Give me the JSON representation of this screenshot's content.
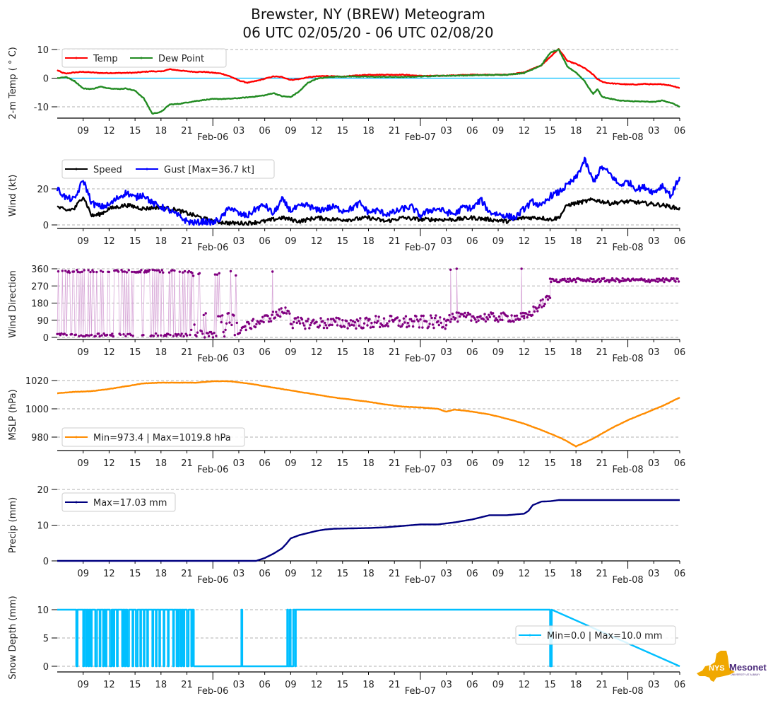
{
  "title": {
    "line1": "Brewster, NY (BREW) Meteogram",
    "line2": "06 UTC 02/05/20 - 06 UTC 02/08/20"
  },
  "x_axis": {
    "start": "06 UTC 02/05/20",
    "end": "06 UTC 02/08/20",
    "hours_span": 72,
    "minor_tick_labels": [
      "09",
      "12",
      "15",
      "18",
      "21",
      "03",
      "06",
      "09",
      "12",
      "15",
      "18",
      "21",
      "03",
      "06",
      "09",
      "12",
      "15",
      "18",
      "21",
      "03",
      "06"
    ],
    "minor_tick_hours": [
      3,
      6,
      9,
      12,
      15,
      21,
      24,
      27,
      30,
      33,
      36,
      39,
      45,
      48,
      51,
      54,
      57,
      60,
      63,
      69,
      72
    ],
    "major_tick_labels": [
      "Feb-06",
      "Feb-07",
      "Feb-08"
    ],
    "major_tick_hours": [
      18,
      42,
      66
    ]
  },
  "logo": {
    "name": "NYS Mesonet",
    "text_nys": "NYS",
    "text_mesonet": "Mesonet",
    "subtext": "UNIVERSITY AT ALBANY",
    "colors": {
      "state": "#f0a800",
      "text": "#4b2a7b"
    }
  },
  "chart_data": [
    {
      "type": "line",
      "id": "temp",
      "ylabel": "2-m Temp ($^\\circ$C)",
      "ylabel_display": "2-m Temp ( ° C)",
      "yticks": [
        -10,
        0,
        10
      ],
      "ylim": [
        -14,
        12
      ],
      "grid": true,
      "zero_line": {
        "value": 0,
        "color": "#00bfff"
      },
      "legend": {
        "position": "top-left",
        "ncol": 2
      },
      "series": [
        {
          "name": "Temp",
          "color": "#ff0000",
          "x": [
            0,
            0.5,
            1,
            2,
            3,
            5,
            7,
            9,
            10,
            11,
            12,
            13,
            15,
            16,
            17,
            19,
            20,
            21,
            22,
            23,
            24,
            25,
            26,
            27,
            28,
            29,
            30,
            31,
            32,
            33,
            34,
            36,
            40,
            42,
            44,
            46,
            48,
            50,
            52,
            54,
            56,
            58,
            59,
            60,
            61,
            62,
            62.5,
            63,
            63.5,
            64,
            65,
            66,
            67,
            68,
            69,
            70,
            71,
            72
          ],
          "values": [
            2.8,
            2.0,
            1.6,
            2.0,
            2.2,
            1.8,
            1.8,
            1.9,
            2.2,
            2.4,
            2.3,
            3.1,
            2.4,
            2.2,
            2.2,
            1.6,
            0.6,
            -0.8,
            -1.6,
            -1.0,
            -0.2,
            0.6,
            0.4,
            -0.6,
            -0.3,
            0.3,
            0.6,
            0.8,
            0.6,
            0.5,
            0.8,
            1.2,
            1.2,
            0.8,
            0.8,
            1.0,
            1.2,
            1.2,
            1.2,
            2.0,
            4.5,
            10.2,
            6.0,
            5.0,
            3.5,
            1.2,
            -0.4,
            -1.2,
            -1.6,
            -1.8,
            -2.0,
            -2.2,
            -2.2,
            -2.0,
            -2.2,
            -2.1,
            -2.6,
            -3.4
          ]
        },
        {
          "name": "Dew Point",
          "color": "#228b22",
          "x": [
            0,
            1,
            2,
            3,
            4,
            5,
            6,
            7,
            8,
            9,
            10,
            11,
            12,
            13,
            14,
            15,
            16,
            17,
            18,
            20,
            22,
            24,
            25,
            26,
            27,
            28,
            29,
            30,
            31,
            32,
            34,
            36,
            40,
            44,
            48,
            52,
            54,
            56,
            57,
            58,
            58.5,
            59,
            60,
            61,
            61.5,
            62,
            62.5,
            63,
            64,
            65,
            66,
            67,
            68,
            69,
            70,
            71,
            72
          ],
          "values": [
            0.0,
            0.4,
            -1.0,
            -3.6,
            -3.8,
            -3.0,
            -3.5,
            -3.8,
            -3.6,
            -4.4,
            -7.0,
            -12.4,
            -11.8,
            -9.2,
            -9.0,
            -8.5,
            -8.0,
            -7.6,
            -7.3,
            -7.2,
            -6.7,
            -6.0,
            -5.2,
            -6.3,
            -6.6,
            -4.6,
            -1.6,
            -0.2,
            0.2,
            0.5,
            0.6,
            0.5,
            0.4,
            0.8,
            1.0,
            1.2,
            1.8,
            4.5,
            8.8,
            10.0,
            7.0,
            4.0,
            2.0,
            -1.0,
            -3.5,
            -5.5,
            -3.8,
            -6.5,
            -7.2,
            -7.8,
            -8.0,
            -8.1,
            -8.2,
            -8.3,
            -7.8,
            -8.6,
            -10.0
          ]
        }
      ]
    },
    {
      "type": "line",
      "id": "wind",
      "ylabel": "Wind (kt)",
      "yticks": [
        0,
        20
      ],
      "ylim": [
        -2,
        38
      ],
      "grid": true,
      "legend": {
        "position": "top-left",
        "ncol": 2
      },
      "series": [
        {
          "name": "Speed",
          "color": "#000000",
          "x": [
            0,
            1,
            2,
            3,
            4,
            5,
            6,
            8,
            10,
            12,
            14,
            16,
            18,
            20,
            22,
            24,
            26,
            28,
            30,
            32,
            34,
            36,
            38,
            40,
            42,
            44,
            46,
            48,
            50,
            52,
            54,
            56,
            57,
            58,
            59,
            60,
            62,
            64,
            66,
            68,
            70,
            71,
            72
          ],
          "values": [
            10,
            8,
            9,
            16,
            5,
            6,
            9,
            11,
            9,
            10,
            8,
            5,
            2,
            1,
            1,
            2,
            4,
            2,
            4,
            3,
            3,
            4,
            2,
            4,
            3,
            3,
            3,
            4,
            3,
            2,
            4,
            4,
            3,
            4,
            11,
            12,
            14,
            12,
            13,
            12,
            11,
            10,
            9
          ]
        },
        {
          "name": "Gust [Max=36.7 kt]",
          "color": "#0000ff",
          "x": [
            0,
            1,
            2,
            3,
            4,
            5,
            6,
            7,
            8,
            9,
            10,
            11,
            12,
            13,
            14,
            15,
            16,
            17,
            18,
            19,
            20,
            21,
            22,
            23,
            24,
            25,
            26,
            27,
            28,
            29,
            30,
            31,
            32,
            33,
            34,
            35,
            36,
            37,
            38,
            39,
            40,
            41,
            42,
            43,
            44,
            45,
            46,
            47,
            48,
            49,
            50,
            51,
            52,
            53,
            54,
            55,
            56,
            57,
            58,
            59,
            60,
            61,
            62,
            63,
            64,
            65,
            66,
            67,
            68,
            69,
            70,
            71,
            72
          ],
          "values": [
            20,
            15,
            14,
            25,
            12,
            10,
            11,
            15,
            18,
            15,
            17,
            12,
            10,
            8,
            5,
            2,
            1,
            2,
            1,
            4,
            10,
            6,
            5,
            9,
            11,
            6,
            14,
            8,
            10,
            11,
            8,
            9,
            10,
            8,
            9,
            12,
            7,
            8,
            6,
            7,
            9,
            10,
            5,
            8,
            9,
            7,
            6,
            10,
            9,
            14,
            7,
            6,
            5,
            4,
            9,
            13,
            10,
            16,
            18,
            22,
            26,
            36,
            24,
            32,
            28,
            22,
            24,
            20,
            21,
            18,
            22,
            16,
            27
          ]
        }
      ]
    },
    {
      "type": "scatter",
      "id": "direction",
      "ylabel": "Wind Direction",
      "yticks": [
        0,
        90,
        180,
        270,
        360
      ],
      "ylim": [
        -5,
        370
      ],
      "grid": true,
      "color": "#800080",
      "connect_line_color": "#d8a8d8",
      "segments": [
        {
          "x_range": [
            0,
            15.5
          ],
          "pattern": "alternating",
          "high": 355,
          "low": 5,
          "description": "oscillating between ~0 and ~360 (north)"
        },
        {
          "x_range": [
            15.5,
            21
          ],
          "pattern": "noisy",
          "values_hint": [
            10,
            30,
            330,
            120,
            0,
            70,
            340,
            20
          ]
        },
        {
          "x_range": [
            21,
            27
          ],
          "pattern": "trend",
          "from": 40,
          "to": 150
        },
        {
          "x_range": [
            27,
            36
          ],
          "pattern": "noisy_mean",
          "mean": 75,
          "spread": 30
        },
        {
          "x_range": [
            36,
            45
          ],
          "pattern": "noisy_mean",
          "mean": 80,
          "spread": 35
        },
        {
          "x_range": [
            45,
            54
          ],
          "pattern": "noisy_mean",
          "mean": 105,
          "spread": 25
        },
        {
          "x_range": [
            54,
            57
          ],
          "pattern": "trend",
          "from": 100,
          "to": 210
        },
        {
          "x_range": [
            57,
            72
          ],
          "pattern": "noisy_mean",
          "mean": 300,
          "spread": 10
        }
      ],
      "spikes": [
        {
          "x": 24.9,
          "value": 345
        },
        {
          "x": 45.5,
          "value": 355
        },
        {
          "x": 46.2,
          "value": 360
        },
        {
          "x": 53.7,
          "value": 360
        }
      ]
    },
    {
      "type": "line",
      "id": "mslp",
      "ylabel": "MSLP (hPa)",
      "yticks": [
        980,
        1000,
        1020
      ],
      "ylim": [
        971,
        1024
      ],
      "grid": true,
      "legend": {
        "position": "bottom-left"
      },
      "series": [
        {
          "name": "Min=973.4 | Max=1019.8 hPa",
          "color": "#ff8c00",
          "x": [
            0,
            2,
            4,
            6,
            8,
            10,
            12,
            14,
            16,
            18,
            19,
            20,
            22,
            24,
            26,
            28,
            30,
            32,
            34,
            36,
            38,
            40,
            42,
            44,
            45,
            46,
            48,
            50,
            52,
            54,
            56,
            58,
            59,
            60,
            62,
            64,
            66,
            68,
            70,
            72
          ],
          "values": [
            1011,
            1012,
            1012.5,
            1014,
            1016,
            1018,
            1018.5,
            1018.5,
            1018.5,
            1019.5,
            1019.5,
            1019.5,
            1018,
            1016,
            1014,
            1012,
            1010,
            1008,
            1006.5,
            1005,
            1003,
            1001.5,
            1001,
            1000,
            998,
            999.5,
            998,
            996,
            993,
            989.5,
            985,
            980,
            977,
            973.4,
            979,
            986,
            992,
            997,
            1002,
            1008
          ]
        }
      ]
    },
    {
      "type": "line",
      "id": "precip",
      "ylabel": "Precip (mm)",
      "yticks": [
        0,
        10,
        20
      ],
      "ylim": [
        0,
        20
      ],
      "grid": true,
      "legend": {
        "position": "top-left"
      },
      "series": [
        {
          "name": "Max=17.03 mm",
          "color": "#000080",
          "x": [
            0,
            23,
            24,
            25,
            26,
            26.5,
            27,
            28,
            29,
            30,
            31,
            32,
            34,
            36,
            38,
            40,
            42,
            44,
            46,
            48,
            50,
            52,
            54,
            54.5,
            55,
            56,
            57,
            58,
            60,
            64,
            68,
            72
          ],
          "values": [
            0,
            0,
            0.8,
            2.0,
            3.5,
            4.8,
            6.3,
            7.2,
            7.8,
            8.4,
            8.8,
            9.0,
            9.1,
            9.2,
            9.4,
            9.8,
            10.2,
            10.2,
            10.8,
            11.6,
            12.8,
            12.8,
            13.2,
            14.0,
            15.6,
            16.6,
            16.7,
            17.03,
            17.03,
            17.03,
            17.03,
            17.03
          ]
        }
      ]
    },
    {
      "type": "line",
      "id": "snow",
      "ylabel": "Snow Depth (mm)",
      "yticks": [
        0,
        5,
        10
      ],
      "ylim": [
        -1,
        12
      ],
      "grid": true,
      "legend": {
        "position": "center-right"
      },
      "series": [
        {
          "name": "Min=0.0 | Max=10.0 mm",
          "color": "#00bfff",
          "pattern": "binary_toggle",
          "on_value": 10,
          "off_value": 0,
          "toggle_hours": [
            0,
            2.2,
            2.35,
            3.0,
            3.1,
            3.3,
            3.4,
            3.6,
            3.7,
            3.9,
            4.0,
            4.4,
            4.6,
            4.9,
            5.0,
            5.3,
            5.4,
            5.6,
            5.7,
            6.1,
            6.3,
            6.5,
            6.6,
            6.9,
            7.0,
            7.5,
            7.6,
            7.8,
            7.9,
            8.1,
            8.3,
            8.7,
            8.8,
            9.1,
            9.3,
            9.6,
            9.7,
            10.0,
            10.1,
            10.4,
            10.5,
            11.0,
            11.1,
            11.4,
            11.5,
            11.8,
            11.9,
            12.3,
            12.4,
            12.8,
            12.9,
            13.4,
            13.5,
            13.8,
            13.9,
            14.0,
            14.1,
            14.3,
            14.4,
            14.6,
            14.7,
            15.0,
            15.2,
            15.5,
            15.6,
            15.8,
            21.3,
            21.4,
            26.6,
            26.7,
            26.9,
            27.0,
            27.3,
            27.5,
            27.6,
            57.0,
            57.2
          ],
          "final_value": 0
        }
      ]
    }
  ]
}
